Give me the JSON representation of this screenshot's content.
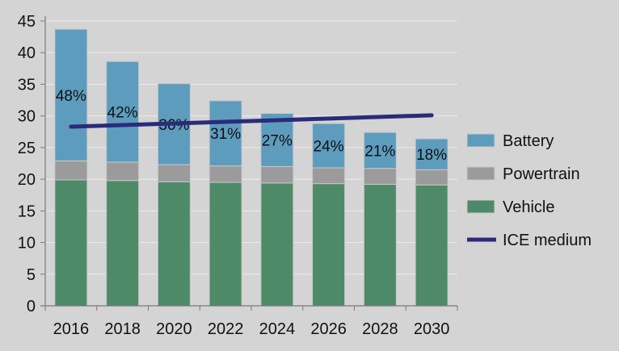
{
  "chart_data": {
    "type": "bar",
    "stacked": true,
    "categories": [
      "2016",
      "2018",
      "2020",
      "2022",
      "2024",
      "2026",
      "2028",
      "2030"
    ],
    "series": [
      {
        "name": "Vehicle",
        "color": "#4e8a68",
        "values": [
          19.9,
          19.8,
          19.6,
          19.5,
          19.4,
          19.3,
          19.2,
          19.1
        ]
      },
      {
        "name": "Powertrain",
        "color": "#9b9b9b",
        "values": [
          3.0,
          2.9,
          2.7,
          2.6,
          2.6,
          2.5,
          2.5,
          2.4
        ]
      },
      {
        "name": "Battery",
        "color": "#5e9cbe",
        "values": [
          20.8,
          15.9,
          12.8,
          10.3,
          8.4,
          7.0,
          5.7,
          4.9
        ]
      }
    ],
    "bar_labels": [
      "48%",
      "42%",
      "36%",
      "31%",
      "27%",
      "24%",
      "21%",
      "18%"
    ],
    "line": {
      "name": "ICE medium",
      "color": "#2b2b7a",
      "values": [
        28.3,
        null,
        null,
        null,
        null,
        null,
        null,
        30.1
      ]
    },
    "ylim": [
      0,
      45
    ],
    "yticks": [
      0,
      5,
      10,
      15,
      20,
      25,
      30,
      35,
      40,
      45
    ],
    "grid": true,
    "legend": {
      "position": "right",
      "entries": [
        "Battery",
        "Powertrain",
        "Vehicle",
        "ICE medium"
      ]
    }
  }
}
